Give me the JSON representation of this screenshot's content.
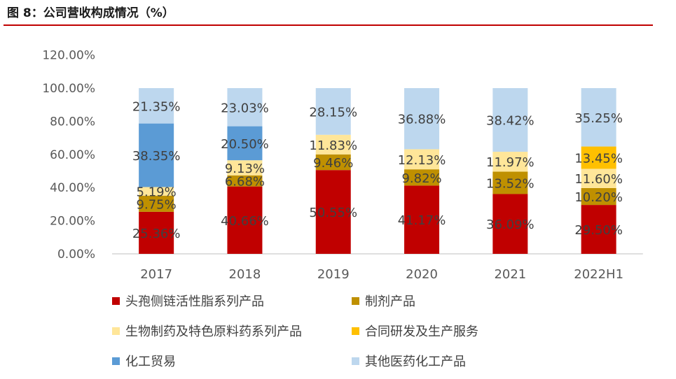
{
  "header": {
    "title": "图 8：公司营收构成情况（%）"
  },
  "chart_data": {
    "type": "bar",
    "stacked": true,
    "categories": [
      "2017",
      "2018",
      "2019",
      "2020",
      "2021",
      "2022H1"
    ],
    "yticks": [
      "0.00%",
      "20.00%",
      "40.00%",
      "60.00%",
      "80.00%",
      "100.00%",
      "120.00%"
    ],
    "ylim": [
      0,
      120
    ],
    "grid": false,
    "legend_position": "bottom",
    "series": [
      {
        "name": "头孢侧链活性脂系列产品",
        "color": "#c00000",
        "values": [
          25.36,
          40.66,
          50.55,
          41.17,
          36.09,
          29.5
        ],
        "labels": [
          "25.36%",
          "40.66%",
          "50.55%",
          "41.17%",
          "36.09%",
          "29.50%"
        ]
      },
      {
        "name": "制剂产品",
        "color": "#bf9000",
        "values": [
          9.75,
          6.68,
          9.46,
          9.82,
          13.52,
          10.2
        ],
        "labels": [
          "9.75%",
          "6.68%",
          "9.46%",
          "9.82%",
          "13.52%",
          "10.20%"
        ]
      },
      {
        "name": "生物制药及特色原料药系列产品",
        "color": "#ffe699",
        "values": [
          5.19,
          9.13,
          11.83,
          12.13,
          11.97,
          11.6
        ],
        "labels": [
          "5.19%",
          "9.13%",
          "11.83%",
          "12.13%",
          "11.97%",
          "11.60%"
        ]
      },
      {
        "name": "合同研发及生产服务",
        "color": "#ffc000",
        "values": [
          0,
          0,
          0,
          0,
          0,
          13.45
        ],
        "labels": [
          "",
          "",
          "",
          "",
          "",
          "13.45%"
        ]
      },
      {
        "name": "化工贸易",
        "color": "#5b9bd5",
        "values": [
          38.35,
          20.5,
          0,
          0,
          0,
          0
        ],
        "labels": [
          "38.35%",
          "20.50%",
          "",
          "",
          "",
          ""
        ]
      },
      {
        "name": "其他医药化工产品",
        "color": "#bdd7ee",
        "values": [
          21.35,
          23.03,
          28.15,
          36.88,
          38.42,
          35.25
        ],
        "labels": [
          "21.35%",
          "23.03%",
          "28.15%",
          "36.88%",
          "38.42%",
          "35.25%"
        ]
      }
    ]
  }
}
